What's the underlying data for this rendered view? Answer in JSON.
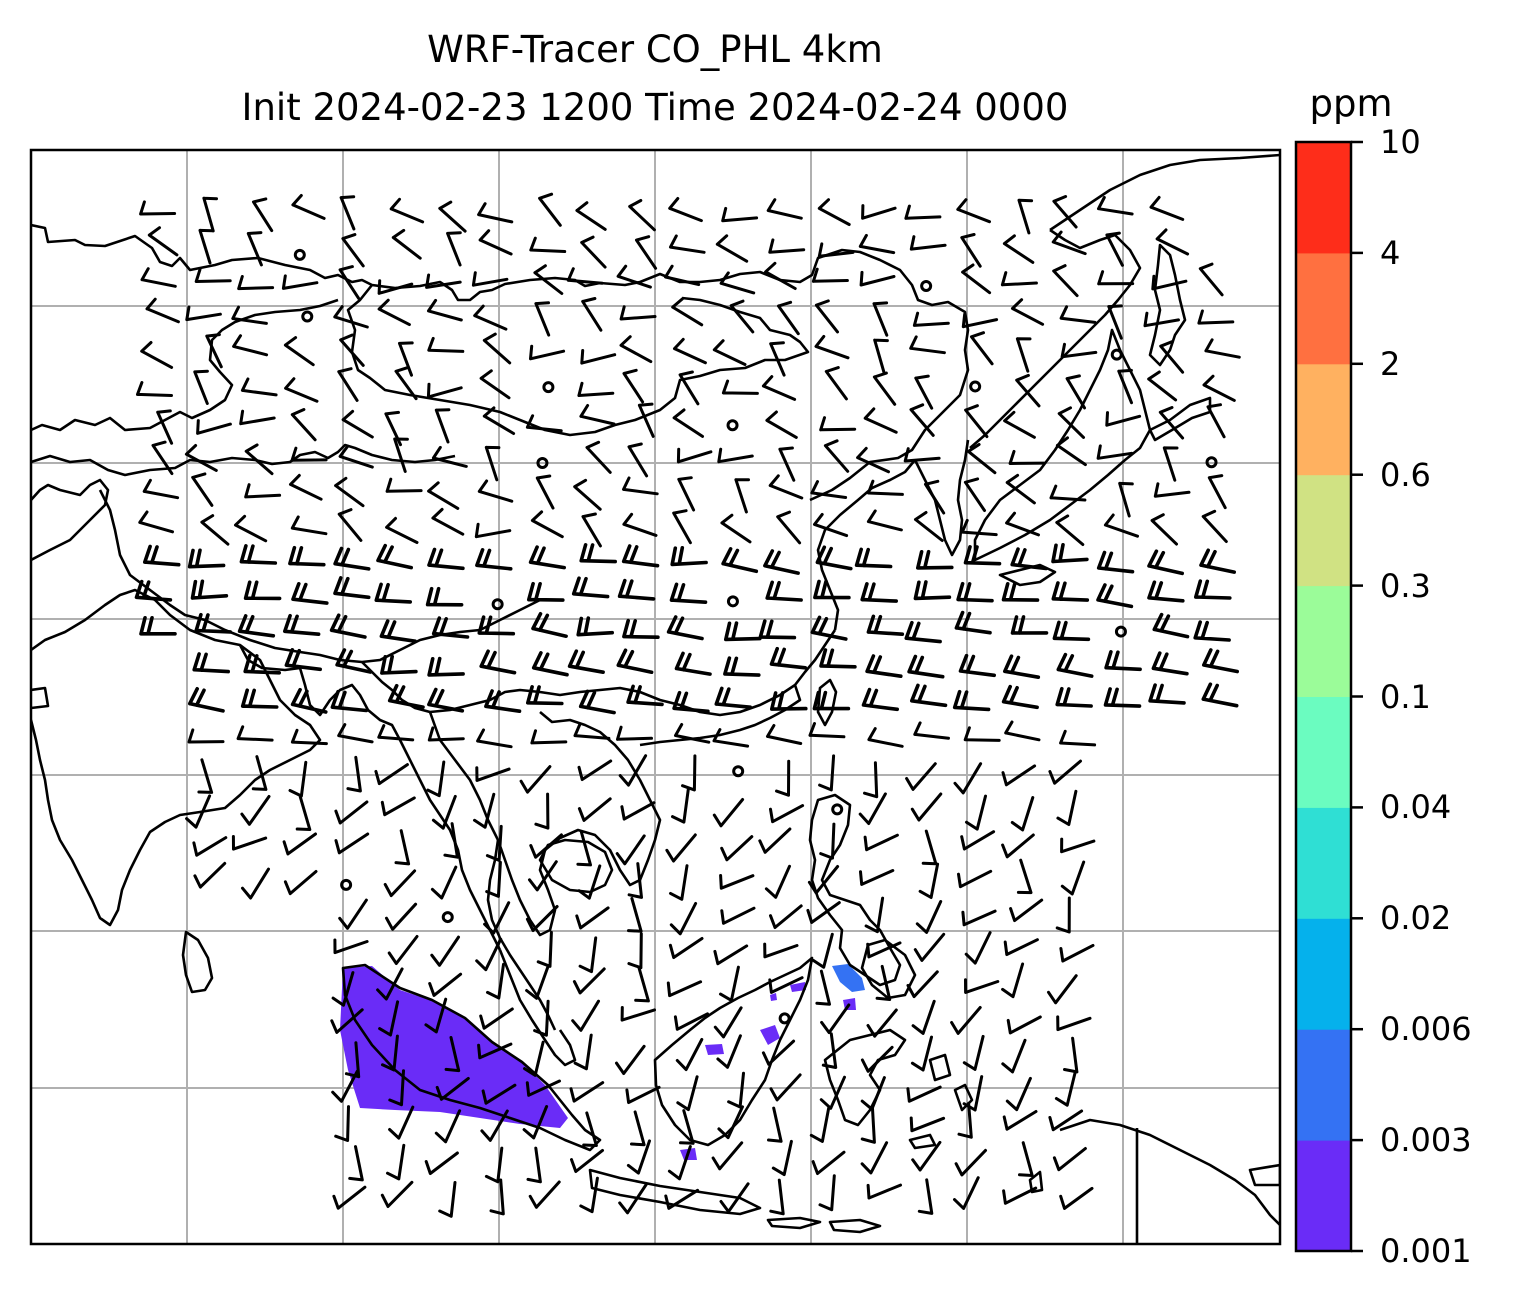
{
  "title_line1": "WRF-Tracer CO_PHL 4km",
  "title_line2": "Init 2024-02-23 1200 Time 2024-02-24 0000",
  "colorbar": {
    "unit": "ppm",
    "ticks": [
      "0.001",
      "0.003",
      "0.006",
      "0.02",
      "0.04",
      "0.1",
      "0.3",
      "0.6",
      "2",
      "4",
      "10"
    ],
    "colors": [
      "#6a2cf7",
      "#3472f3",
      "#05b1ec",
      "#2fdfd4",
      "#6bfcc0",
      "#9bfc99",
      "#d0e283",
      "#ffb160",
      "#ff7040",
      "#fe2d1a"
    ]
  },
  "map": {
    "gridlines": "on",
    "tracer_color": "#6a2cf7",
    "tracer_color_secondary": "#3472f3",
    "wind_barbs": "overlay",
    "calm_markers": "circles"
  }
}
